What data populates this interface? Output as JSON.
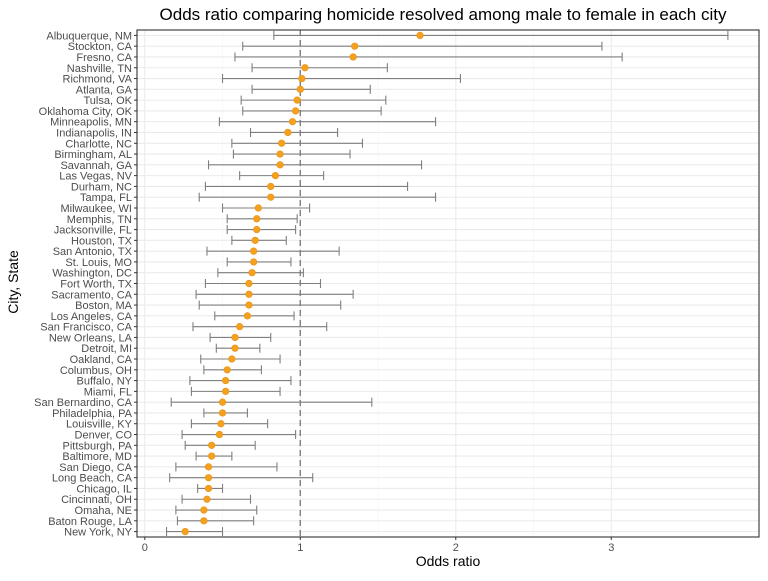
{
  "chart_data": {
    "type": "scatter",
    "title": "Odds ratio comparing homicide resolved among male to female in each city",
    "xlabel": "Odds ratio",
    "ylabel": "City, State",
    "xlim": [
      -0.05,
      3.95
    ],
    "x_ticks": [
      0,
      1,
      2,
      3
    ],
    "x_tick_labels": [
      "0",
      "1",
      "2",
      "3"
    ],
    "reference_line": 1,
    "grid": true,
    "legend": "none",
    "colors": {
      "point": "#f4a11d",
      "point_outline": "#e8901a",
      "error_bar": "#7f7f7f",
      "reference_line": "#7f7f7f",
      "panel_border": "#333333",
      "grid_major": "#ebebeb",
      "grid_minor": "#f5f5f5"
    },
    "categories": [
      "Albuquerque, NM",
      "Stockton, CA",
      "Fresno, CA",
      "Nashville, TN",
      "Richmond, VA",
      "Atlanta, GA",
      "Tulsa, OK",
      "Oklahoma City, OK",
      "Minneapolis, MN",
      "Indianapolis, IN",
      "Charlotte, NC",
      "Birmingham, AL",
      "Savannah, GA",
      "Las Vegas, NV",
      "Durham, NC",
      "Tampa, FL",
      "Milwaukee, WI",
      "Memphis, TN",
      "Jacksonville, FL",
      "Houston, TX",
      "San Antonio, TX",
      "St. Louis, MO",
      "Washington, DC",
      "Fort Worth, TX",
      "Sacramento, CA",
      "Boston, MA",
      "Los Angeles, CA",
      "San Francisco, CA",
      "New Orleans, LA",
      "Detroit, MI",
      "Oakland, CA",
      "Columbus, OH",
      "Buffalo, NY",
      "Miami, FL",
      "San Bernardino, CA",
      "Philadelphia, PA",
      "Louisville, KY",
      "Denver, CO",
      "Pittsburgh, PA",
      "Baltimore, MD",
      "San Diego, CA",
      "Long Beach, CA",
      "Chicago, IL",
      "Cincinnati, OH",
      "Omaha, NE",
      "Baton Rouge, LA",
      "New York, NY"
    ],
    "or": [
      1.77,
      1.35,
      1.34,
      1.03,
      1.01,
      1.0,
      0.98,
      0.97,
      0.95,
      0.92,
      0.88,
      0.87,
      0.87,
      0.84,
      0.81,
      0.81,
      0.73,
      0.72,
      0.72,
      0.71,
      0.7,
      0.7,
      0.69,
      0.67,
      0.67,
      0.67,
      0.66,
      0.61,
      0.58,
      0.58,
      0.56,
      0.53,
      0.52,
      0.52,
      0.5,
      0.5,
      0.49,
      0.48,
      0.43,
      0.43,
      0.41,
      0.41,
      0.41,
      0.4,
      0.38,
      0.38,
      0.26
    ],
    "lower": [
      0.83,
      0.63,
      0.58,
      0.69,
      0.5,
      0.69,
      0.62,
      0.63,
      0.48,
      0.68,
      0.56,
      0.57,
      0.41,
      0.61,
      0.39,
      0.35,
      0.5,
      0.53,
      0.53,
      0.56,
      0.4,
      0.53,
      0.47,
      0.39,
      0.33,
      0.35,
      0.45,
      0.31,
      0.42,
      0.46,
      0.36,
      0.38,
      0.29,
      0.3,
      0.17,
      0.38,
      0.3,
      0.24,
      0.26,
      0.33,
      0.2,
      0.16,
      0.34,
      0.24,
      0.2,
      0.21,
      0.14
    ],
    "upper": [
      3.75,
      2.94,
      3.07,
      1.56,
      2.03,
      1.45,
      1.55,
      1.52,
      1.87,
      1.24,
      1.4,
      1.32,
      1.78,
      1.15,
      1.69,
      1.87,
      1.06,
      0.98,
      0.97,
      0.91,
      1.25,
      0.94,
      1.02,
      1.13,
      1.34,
      1.26,
      0.96,
      1.17,
      0.81,
      0.74,
      0.87,
      0.75,
      0.94,
      0.87,
      1.46,
      0.66,
      0.79,
      0.97,
      0.71,
      0.56,
      0.85,
      1.08,
      0.5,
      0.68,
      0.72,
      0.7,
      0.5
    ]
  }
}
